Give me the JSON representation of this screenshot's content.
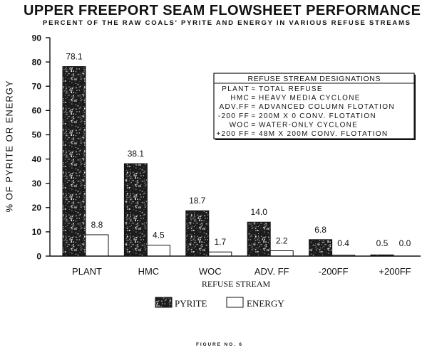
{
  "figure_label": "FIGURE NO. 6",
  "chart_data": {
    "type": "bar",
    "title": "UPPER FREEPORT SEAM FLOWSHEET PERFORMANCE",
    "subtitle": "PERCENT OF THE RAW COALS' PYRITE AND ENERGY IN VARIOUS REFUSE STREAMS",
    "xlabel": "REFUSE STREAM",
    "ylabel": "% OF PYRITE OR ENERGY",
    "ylim": [
      0,
      90
    ],
    "yticks": [
      0,
      10,
      20,
      30,
      40,
      50,
      60,
      70,
      80,
      90
    ],
    "categories": [
      "PLANT",
      "HMC",
      "WOC",
      "ADV. FF",
      "-200FF",
      "+200FF"
    ],
    "series": [
      {
        "name": "PYRITE",
        "values": [
          78.1,
          38.1,
          18.7,
          14.0,
          6.8,
          0.5
        ],
        "color": "#1c1c1c"
      },
      {
        "name": "ENERGY",
        "values": [
          8.8,
          4.5,
          1.7,
          2.2,
          0.4,
          0.0
        ],
        "color": "#ffffff"
      }
    ],
    "data_labels": true,
    "grid": false,
    "legend": "bottom",
    "designations": {
      "header": "REFUSE STREAM DESIGNATIONS",
      "separator": "=",
      "entries": [
        {
          "abbr": "PLANT",
          "description": "TOTAL REFUSE"
        },
        {
          "abbr": "HMC",
          "description": "HEAVY MEDIA CYCLONE"
        },
        {
          "abbr": "ADV.FF",
          "description": "ADVANCED COLUMN FLOTATION"
        },
        {
          "abbr": "-200 FF",
          "description": "200M X 0 CONV. FLOTATION"
        },
        {
          "abbr": "WOC",
          "description": "WATER-ONLY CYCLONE"
        },
        {
          "abbr": "+200 FF",
          "description": "48M X 200M CONV. FLOTATION"
        }
      ]
    }
  }
}
